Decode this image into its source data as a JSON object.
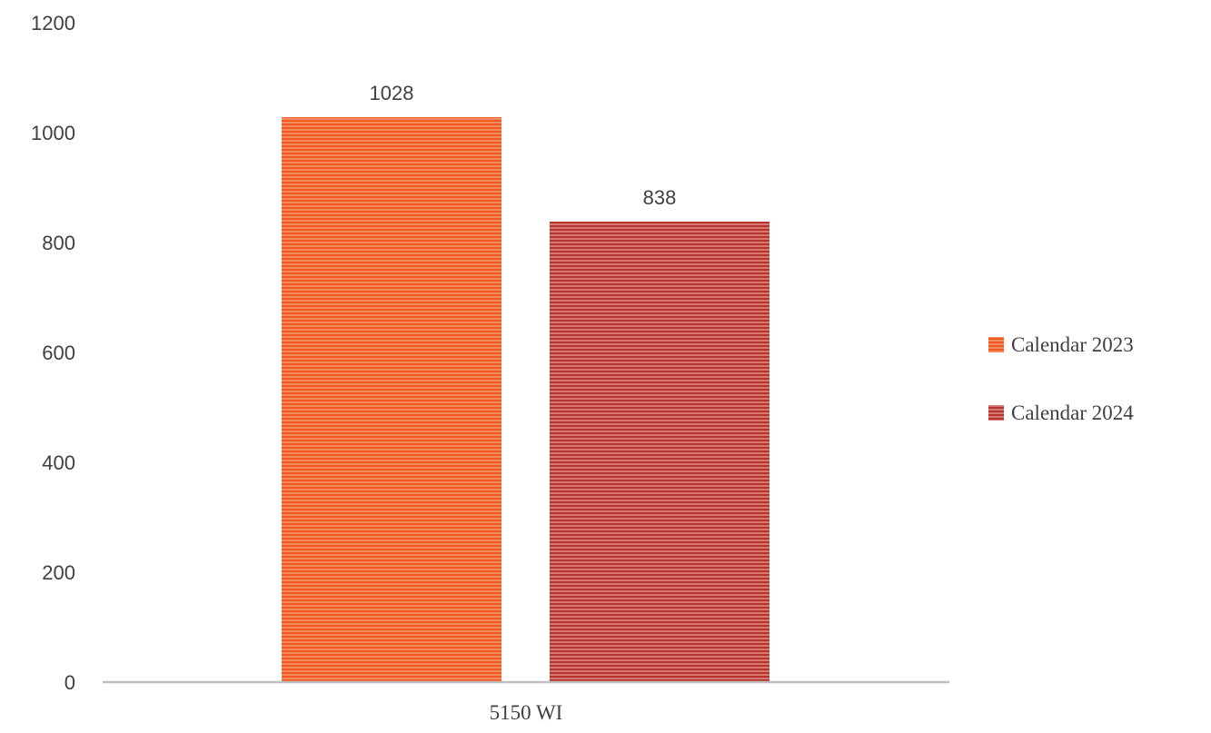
{
  "chart_data": {
    "type": "bar",
    "categories": [
      "5150 WI"
    ],
    "series": [
      {
        "name": "Calendar 2023",
        "values": [
          1028
        ],
        "color": "#F15A24"
      },
      {
        "name": "Calendar 2024",
        "values": [
          838
        ],
        "color": "#B5332A"
      }
    ],
    "data_labels": [
      "1028",
      "838"
    ],
    "yticks": [
      "0",
      "200",
      "400",
      "600",
      "800",
      "1000",
      "1200"
    ],
    "ylim": [
      0,
      1200
    ],
    "title": "",
    "xlabel": "",
    "ylabel": "",
    "legend_position": "right",
    "grid": false,
    "bar_pattern": "horizontal-stripes"
  }
}
